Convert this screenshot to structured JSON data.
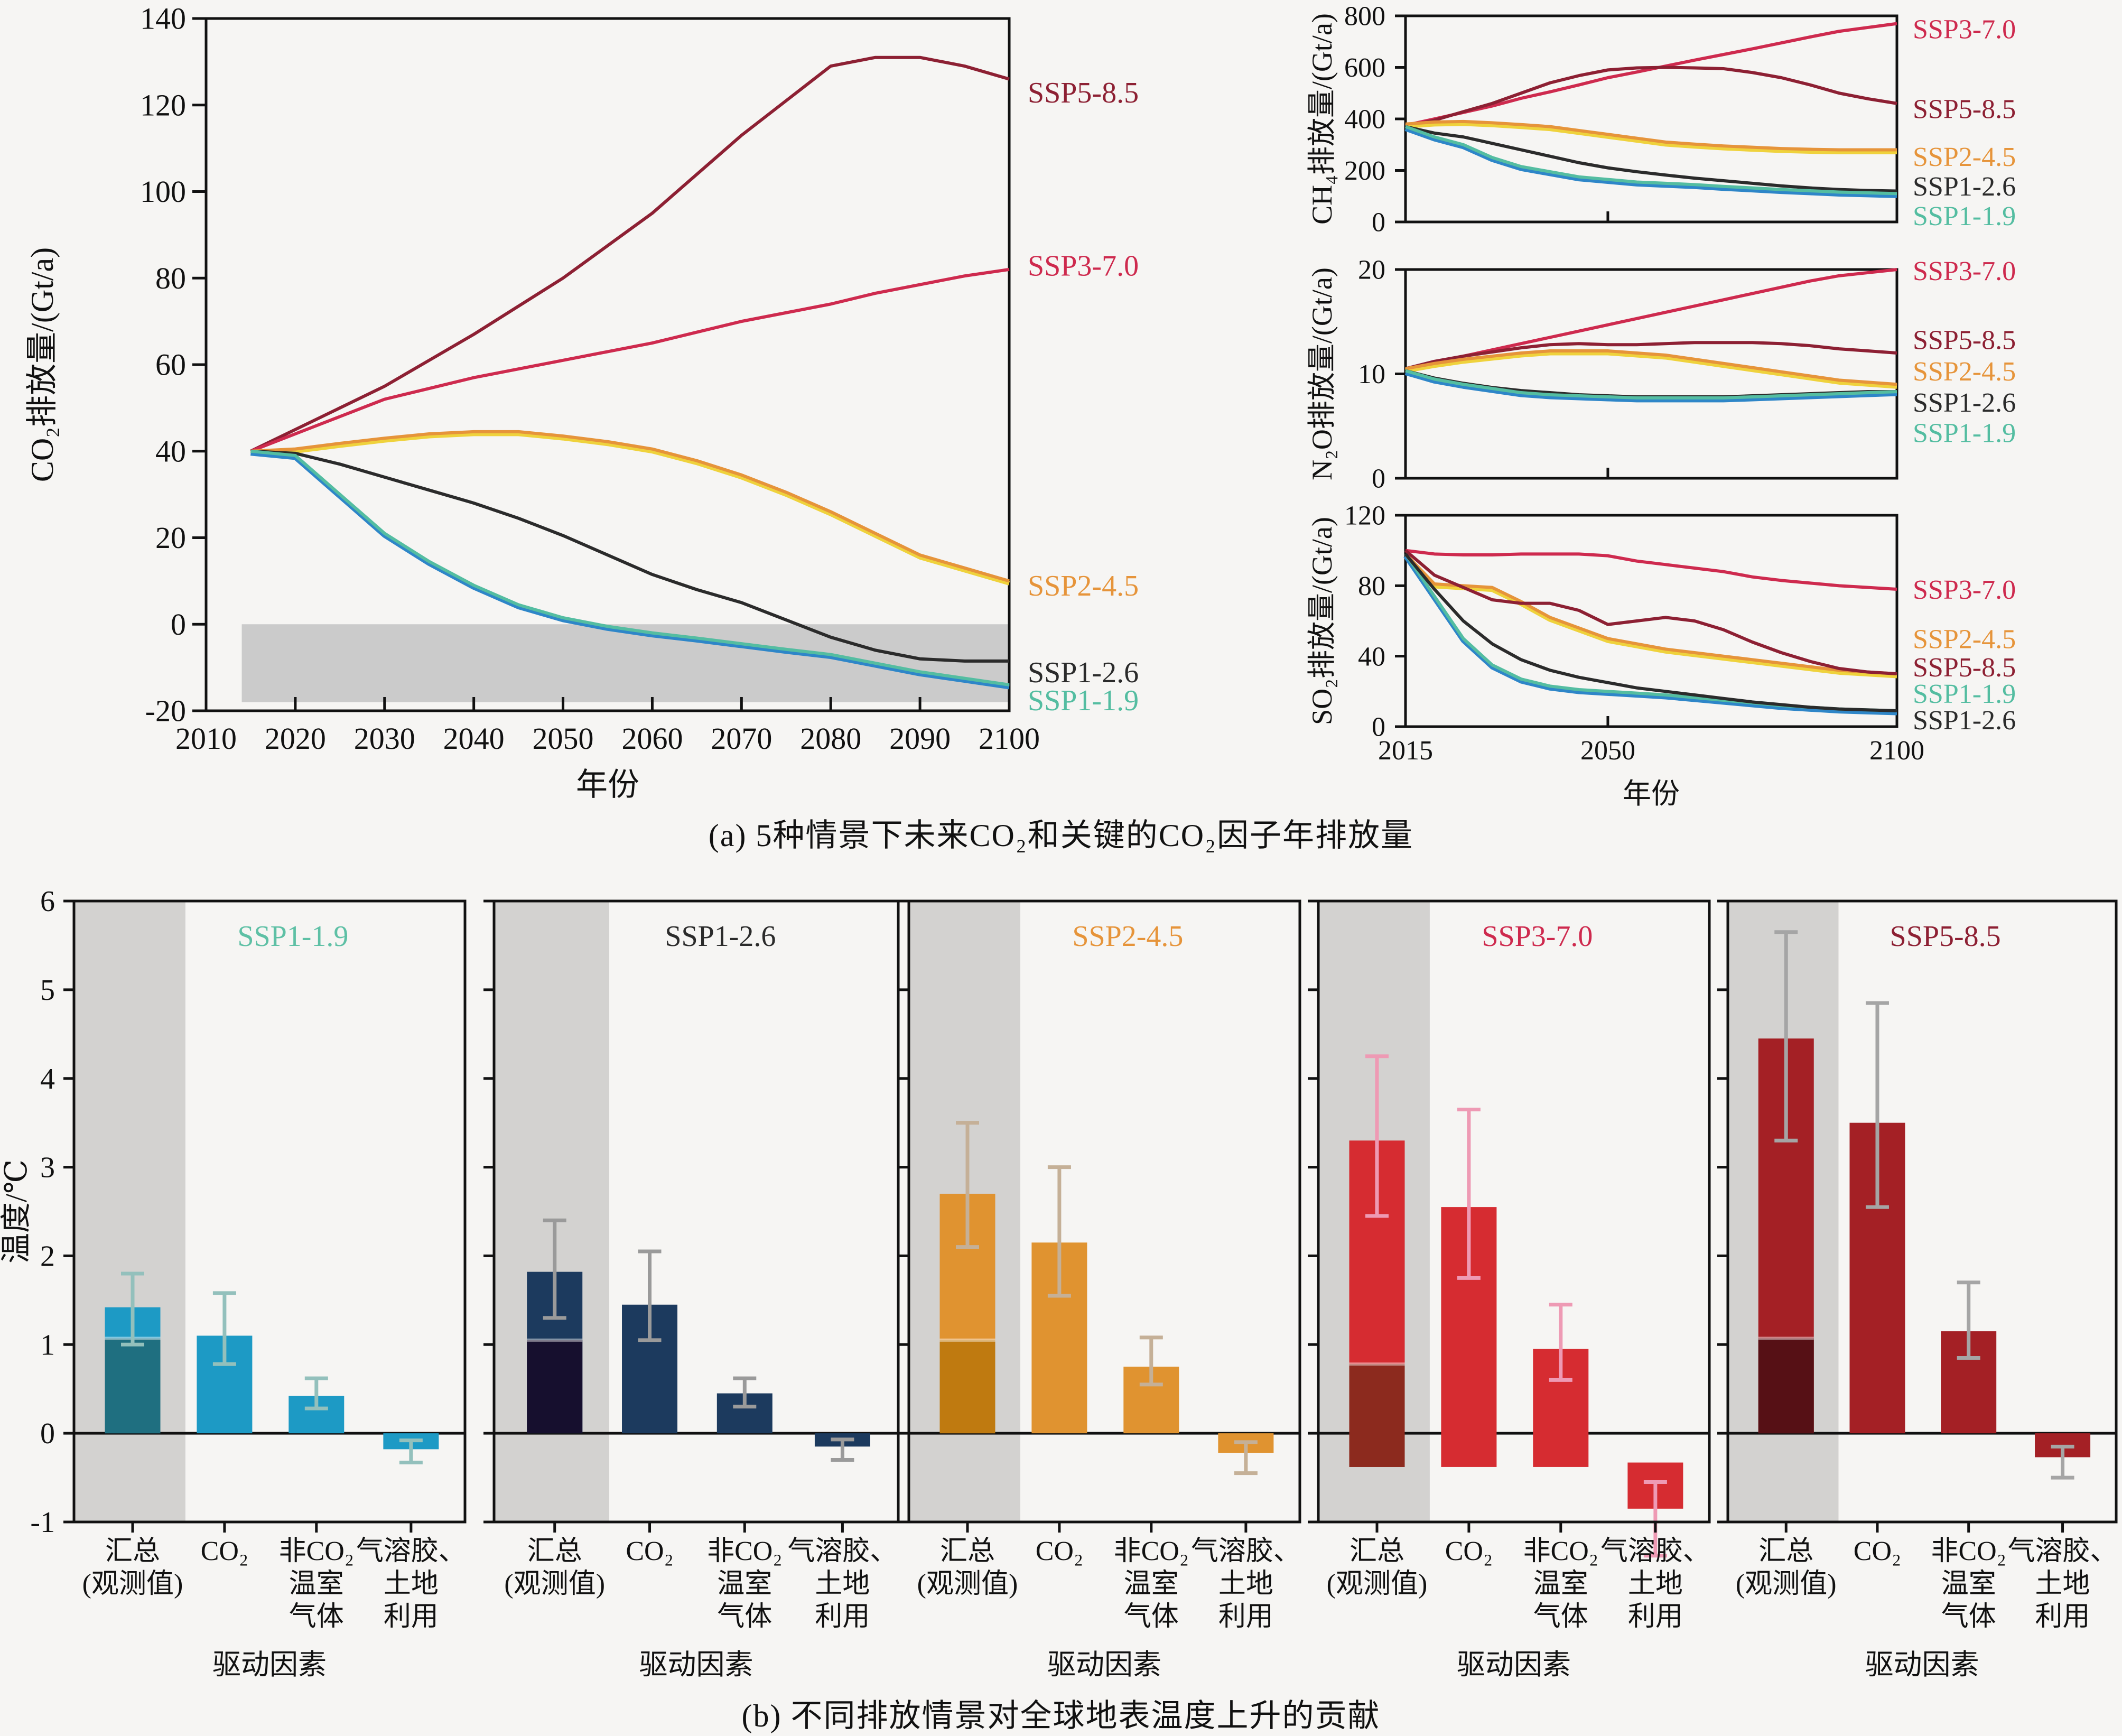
{
  "page": {
    "background": "#f6f5f3",
    "caption_a": "(a) 5种情景下未来CO₂和关键的CO₂因子年排放量",
    "caption_b": "(b) 不同排放情景对全球地表温度上升的贡献"
  },
  "scenario_colors": {
    "SSP1-1.9": "#5ec0a5",
    "SSP1-2.6": "#2b2b2b",
    "SSP2-4.5": "#e6943a",
    "SSP3-7.0": "#ce2a4e",
    "SSP5-8.5": "#8d2033"
  },
  "chart_data": [
    {
      "id": "co2",
      "type": "line",
      "ylabel": "CO₂排放量/(Gt/a)",
      "xlabel": "年份",
      "xlim": [
        2010,
        2100
      ],
      "ylim": [
        -20,
        140
      ],
      "yticks": [
        -20,
        0,
        20,
        40,
        60,
        80,
        100,
        120,
        140
      ],
      "xticks": [
        2010,
        2020,
        2030,
        2040,
        2050,
        2060,
        2070,
        2080,
        2090,
        2100
      ],
      "x_tick_labels_visible": true,
      "shaded_band": {
        "x": [
          2014,
          2100
        ],
        "y": [
          -18,
          0
        ],
        "color": "#cbcbcb"
      },
      "x": [
        2015,
        2020,
        2025,
        2030,
        2035,
        2040,
        2045,
        2050,
        2055,
        2060,
        2065,
        2070,
        2075,
        2080,
        2085,
        2090,
        2095,
        2100
      ],
      "series": [
        {
          "name": "SSP5-8.5",
          "color": "#8d2033",
          "label_at": 123,
          "values": [
            40,
            45,
            50,
            55,
            61,
            67,
            73.5,
            80,
            87.5,
            95,
            104,
            113,
            121,
            129,
            131,
            131,
            129,
            126
          ]
        },
        {
          "name": "SSP3-7.0",
          "color": "#ce2a4e",
          "label_at": 83,
          "values": [
            40,
            44,
            48,
            52,
            54.5,
            57,
            59,
            61,
            63,
            65,
            67.5,
            70,
            72,
            74,
            76.5,
            78.5,
            80.5,
            82
          ]
        },
        {
          "name": "SSP2-4.5",
          "color": "#e6943a",
          "under": "#efd23c",
          "label_at": 9,
          "values": [
            40,
            40.5,
            41.8,
            43,
            44,
            44.5,
            44.5,
            43.5,
            42.2,
            40.5,
            37.8,
            34.5,
            30.5,
            26,
            21,
            16,
            13,
            10
          ]
        },
        {
          "name": "SSP1-2.6",
          "color": "#2b2b2b",
          "label_at": -11,
          "values": [
            40,
            39.5,
            37,
            34,
            31,
            28,
            24.5,
            20.5,
            16,
            11.5,
            8,
            5,
            1,
            -3,
            -6,
            -8,
            -8.5,
            -8.5
          ]
        },
        {
          "name": "SSP1-1.9",
          "color": "#54bda1",
          "under": "#2e86c8",
          "label_at": -17.5,
          "values": [
            40,
            39,
            30,
            21,
            14.5,
            9,
            4.5,
            1.5,
            -0.5,
            -2,
            -3.2,
            -4.5,
            -5.8,
            -7,
            -9,
            -11,
            -12.5,
            -14
          ]
        }
      ]
    },
    {
      "id": "ch4",
      "type": "line",
      "ylabel": "CH₄排放量/(Gt/a)",
      "xlabel": "",
      "xlim": [
        2015,
        2100
      ],
      "ylim": [
        0,
        800
      ],
      "yticks": [
        0,
        200,
        400,
        600,
        800
      ],
      "xticks": [
        2050
      ],
      "x_tick_labels_visible": false,
      "x": [
        2015,
        2020,
        2025,
        2030,
        2035,
        2040,
        2045,
        2050,
        2055,
        2060,
        2065,
        2070,
        2075,
        2080,
        2085,
        2090,
        2095,
        2100
      ],
      "series": [
        {
          "name": "SSP3-7.0",
          "color": "#ce2a4e",
          "label_at": 750,
          "values": [
            375,
            400,
            425,
            450,
            480,
            505,
            532,
            560,
            582,
            605,
            628,
            650,
            672,
            695,
            718,
            740,
            755,
            770
          ]
        },
        {
          "name": "SSP5-8.5",
          "color": "#8d2033",
          "label_at": 440,
          "values": [
            370,
            395,
            428,
            460,
            500,
            540,
            568,
            590,
            598,
            600,
            598,
            595,
            580,
            560,
            532,
            500,
            478,
            460
          ]
        },
        {
          "name": "SSP2-4.5",
          "color": "#e6943a",
          "under": "#efd23c",
          "label_at": 255,
          "values": [
            380,
            388,
            390,
            385,
            378,
            370,
            355,
            340,
            325,
            310,
            302,
            295,
            290,
            285,
            282,
            280,
            280,
            280
          ]
        },
        {
          "name": "SSP1-2.6",
          "color": "#2b2b2b",
          "label_at": 140,
          "values": [
            370,
            345,
            330,
            305,
            280,
            255,
            230,
            210,
            195,
            182,
            170,
            160,
            150,
            140,
            132,
            126,
            122,
            120
          ]
        },
        {
          "name": "SSP1-1.9",
          "color": "#54bda1",
          "under": "#2e86c8",
          "label_at": 25,
          "values": [
            370,
            330,
            300,
            250,
            215,
            195,
            175,
            165,
            155,
            150,
            145,
            138,
            132,
            126,
            121,
            116,
            113,
            110
          ]
        }
      ]
    },
    {
      "id": "n2o",
      "type": "line",
      "ylabel": "N₂O排放量/(Gt/a)",
      "xlabel": "",
      "xlim": [
        2015,
        2100
      ],
      "ylim": [
        0,
        20
      ],
      "yticks": [
        0,
        10,
        20
      ],
      "xticks": [
        2050
      ],
      "x_tick_labels_visible": false,
      "x": [
        2015,
        2020,
        2025,
        2030,
        2035,
        2040,
        2045,
        2050,
        2055,
        2060,
        2065,
        2070,
        2075,
        2080,
        2085,
        2090,
        2095,
        2100
      ],
      "series": [
        {
          "name": "SSP3-7.0",
          "color": "#ce2a4e",
          "label_at": 19.9,
          "values": [
            10.5,
            11.1,
            11.7,
            12.3,
            12.9,
            13.5,
            14.1,
            14.7,
            15.3,
            15.9,
            16.5,
            17.1,
            17.7,
            18.3,
            18.9,
            19.4,
            19.7,
            20
          ]
        },
        {
          "name": "SSP5-8.5",
          "color": "#8d2033",
          "label_at": 13.3,
          "values": [
            10.5,
            11.2,
            11.7,
            12.1,
            12.5,
            12.8,
            12.9,
            12.8,
            12.8,
            12.9,
            13,
            13,
            13,
            12.9,
            12.7,
            12.4,
            12.2,
            12
          ]
        },
        {
          "name": "SSP2-4.5",
          "color": "#e6943a",
          "under": "#efd23c",
          "label_at": 10.3,
          "values": [
            10.5,
            11,
            11.4,
            11.7,
            12,
            12.2,
            12.2,
            12.2,
            12,
            11.8,
            11.4,
            11,
            10.6,
            10.2,
            9.8,
            9.4,
            9.2,
            9
          ]
        },
        {
          "name": "SSP1-2.6",
          "color": "#2b2b2b",
          "label_at": 7.3,
          "values": [
            10.3,
            9.6,
            9.1,
            8.7,
            8.4,
            8.2,
            8,
            7.9,
            7.8,
            7.8,
            7.8,
            7.8,
            7.9,
            8,
            8.1,
            8.2,
            8.3,
            8.3
          ]
        },
        {
          "name": "SSP1-1.9",
          "color": "#54bda1",
          "under": "#2e86c8",
          "label_at": 4.4,
          "values": [
            10.3,
            9.5,
            9,
            8.6,
            8.2,
            8,
            7.9,
            7.8,
            7.7,
            7.7,
            7.7,
            7.7,
            7.8,
            7.9,
            8,
            8.1,
            8.2,
            8.3
          ]
        }
      ]
    },
    {
      "id": "so2",
      "type": "line",
      "ylabel": "SO₂排放量/(Gt/a)",
      "xlabel": "年份",
      "xlim": [
        2015,
        2100
      ],
      "ylim": [
        0,
        120
      ],
      "yticks": [
        0,
        40,
        80,
        120
      ],
      "xticks": [
        2015,
        2050,
        2100
      ],
      "x_tick_labels_visible": true,
      "x": [
        2015,
        2020,
        2025,
        2030,
        2035,
        2040,
        2045,
        2050,
        2055,
        2060,
        2065,
        2070,
        2075,
        2080,
        2085,
        2090,
        2095,
        2100
      ],
      "series": [
        {
          "name": "SSP3-7.0",
          "color": "#ce2a4e",
          "label_at": 78,
          "values": [
            100,
            98,
            97.5,
            97.5,
            98,
            98,
            98,
            97,
            94,
            92,
            90,
            88,
            85,
            83,
            81.5,
            80,
            79,
            78
          ]
        },
        {
          "name": "SSP2-4.5",
          "color": "#e6943a",
          "under": "#efd23c",
          "label_at": 50,
          "values": [
            98,
            81,
            80,
            79,
            71,
            62,
            56,
            50,
            47,
            44,
            42,
            40,
            38,
            36,
            34,
            32,
            31,
            30
          ]
        },
        {
          "name": "SSP5-8.5",
          "color": "#8d2033",
          "label_at": 34,
          "values": [
            100,
            86,
            79,
            72,
            70,
            70,
            66,
            58,
            60,
            62,
            60,
            55,
            48,
            42,
            37,
            33,
            31,
            30
          ]
        },
        {
          "name": "SSP1-1.9",
          "color": "#54bda1",
          "under": "#2e86c8",
          "label_at": 19,
          "values": [
            98,
            74,
            50,
            35,
            27,
            23,
            21,
            20,
            19,
            18,
            16.5,
            15,
            13.5,
            12,
            11,
            10,
            9.5,
            9
          ]
        },
        {
          "name": "SSP1-2.6",
          "color": "#2b2b2b",
          "label_at": 4,
          "values": [
            98,
            78,
            60,
            47,
            38,
            32,
            28,
            25,
            22,
            20,
            18,
            16,
            14,
            12.5,
            11,
            10,
            9.5,
            9
          ]
        }
      ]
    },
    {
      "id": "temp_contrib",
      "type": "bar",
      "ylabel": "温度/℃",
      "xlabel": "驱动因素",
      "ylim": [
        -1,
        6
      ],
      "yticks": [
        -1,
        0,
        1,
        2,
        3,
        4,
        5,
        6
      ],
      "categories": [
        [
          "汇总",
          "(观测值)"
        ],
        [
          "CO₂"
        ],
        [
          "非CO₂",
          "温室",
          "气体"
        ],
        [
          "气溶胶、",
          "土地",
          "利用"
        ]
      ],
      "panels": [
        {
          "scenario": "SSP1-1.9",
          "title_color": "#5ec0a5",
          "bar_color": "#1d9ac5",
          "overlay_color": "#1f6f80",
          "whisker_color": "#93c0bc",
          "bars": [
            {
              "from": 0,
              "to": 1.42,
              "overlay": [
                0,
                1.07
              ],
              "err": [
                1.0,
                1.8
              ]
            },
            {
              "from": 0,
              "to": 1.1,
              "err": [
                0.78,
                1.58
              ]
            },
            {
              "from": 0,
              "to": 0.42,
              "err": [
                0.28,
                0.62
              ]
            },
            {
              "from": -0.18,
              "to": 0,
              "err": [
                -0.33,
                -0.08
              ]
            }
          ]
        },
        {
          "scenario": "SSP1-2.6",
          "title_color": "#2b2b2b",
          "bar_color": "#1c3a5e",
          "overlay_color": "#160f2e",
          "whisker_color": "#9a9a9a",
          "bars": [
            {
              "from": 0,
              "to": 1.82,
              "overlay": [
                0,
                1.05
              ],
              "err": [
                1.3,
                2.4
              ]
            },
            {
              "from": 0,
              "to": 1.45,
              "err": [
                1.05,
                2.05
              ]
            },
            {
              "from": 0,
              "to": 0.45,
              "err": [
                0.3,
                0.62
              ]
            },
            {
              "from": -0.15,
              "to": 0,
              "err": [
                -0.3,
                -0.07
              ]
            }
          ]
        },
        {
          "scenario": "SSP2-4.5",
          "title_color": "#e6943a",
          "bar_color": "#e09330",
          "overlay_color": "#bf7a10",
          "whisker_color": "#c5b097",
          "bars": [
            {
              "from": 0,
              "to": 2.7,
              "overlay": [
                0,
                1.05
              ],
              "err": [
                2.1,
                3.5
              ]
            },
            {
              "from": 0,
              "to": 2.15,
              "err": [
                1.55,
                3.0
              ]
            },
            {
              "from": 0,
              "to": 0.75,
              "err": [
                0.55,
                1.08
              ]
            },
            {
              "from": -0.22,
              "to": 0,
              "err": [
                -0.45,
                -0.1
              ]
            }
          ]
        },
        {
          "scenario": "SSP3-7.0",
          "title_color": "#ce2a4e",
          "bar_color": "#d62c31",
          "overlay_color": "#8c2a1e",
          "whisker_color": "#ee9ab4",
          "bars": [
            {
              "from": -0.38,
              "to": 3.3,
              "overlay": [
                -0.38,
                0.78
              ],
              "err": [
                2.45,
                4.25
              ]
            },
            {
              "from": -0.38,
              "to": 2.55,
              "err": [
                1.75,
                3.65
              ]
            },
            {
              "from": -0.38,
              "to": 0.95,
              "err": [
                0.6,
                1.45
              ]
            },
            {
              "from": -0.85,
              "to": -0.33,
              "err": [
                -1.38,
                -0.55
              ]
            }
          ]
        },
        {
          "scenario": "SSP5-8.5",
          "title_color": "#8d2033",
          "bar_color": "#a42025",
          "overlay_color": "#561015",
          "whisker_color": "#a5a5a5",
          "bars": [
            {
              "from": 0,
              "to": 4.45,
              "overlay": [
                0,
                1.07
              ],
              "err": [
                3.3,
                5.65
              ]
            },
            {
              "from": 0,
              "to": 3.5,
              "err": [
                2.55,
                4.85
              ]
            },
            {
              "from": 0,
              "to": 1.15,
              "err": [
                0.85,
                1.7
              ]
            },
            {
              "from": -0.27,
              "to": 0,
              "err": [
                -0.5,
                -0.15
              ]
            }
          ]
        }
      ]
    }
  ]
}
